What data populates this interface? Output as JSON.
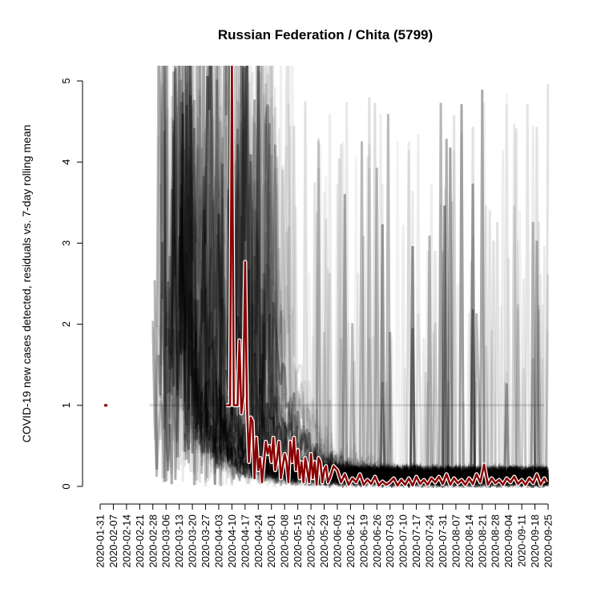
{
  "chart_data": {
    "type": "line",
    "title": "Russian Federation / Chita (5799)",
    "xlabel": "",
    "ylabel": "COVID-19 new cases detected, residuals vs. 7-day rolling mean",
    "ylim": [
      0,
      5
    ],
    "yticks": [
      "0",
      "1",
      "2",
      "3",
      "4",
      "5"
    ],
    "x_tick_labels": [
      "2020-01-31",
      "2020-02-07",
      "2020-02-14",
      "2020-02-21",
      "2020-02-28",
      "2020-03-06",
      "2020-03-13",
      "2020-03-20",
      "2020-03-27",
      "2020-04-03",
      "2020-04-10",
      "2020-04-17",
      "2020-04-24",
      "2020-05-01",
      "2020-05-08",
      "2020-05-15",
      "2020-05-22",
      "2020-05-29",
      "2020-06-05",
      "2020-06-12",
      "2020-06-19",
      "2020-06-26",
      "2020-07-03",
      "2020-07-10",
      "2020-07-17",
      "2020-07-24",
      "2020-07-31",
      "2020-08-07",
      "2020-08-14",
      "2020-08-21",
      "2020-08-28",
      "2020-09-04",
      "2020-09-11",
      "2020-09-18",
      "2020-09-25"
    ],
    "x_start": "2020-01-31",
    "x_end": "2020-09-25",
    "grid": false,
    "background_series_color": "#000000",
    "highlight_color": "#8b0000",
    "series": [
      {
        "x": [
          "2020-02-03",
          "2020-04-07",
          "2020-04-08",
          "2020-04-09",
          "2020-04-10",
          "2020-04-11",
          "2020-04-12",
          "2020-04-13",
          "2020-04-14",
          "2020-04-15",
          "2020-04-16",
          "2020-04-17",
          "2020-04-18",
          "2020-04-19",
          "2020-04-20",
          "2020-04-21",
          "2020-04-22",
          "2020-04-23",
          "2020-04-24",
          "2020-04-25",
          "2020-04-26",
          "2020-04-27",
          "2020-04-28",
          "2020-04-29",
          "2020-04-30",
          "2020-05-01",
          "2020-05-02",
          "2020-05-03",
          "2020-05-04",
          "2020-05-05",
          "2020-05-06",
          "2020-05-07",
          "2020-05-08",
          "2020-05-09",
          "2020-05-10",
          "2020-05-11",
          "2020-05-12",
          "2020-05-13",
          "2020-05-14",
          "2020-05-15",
          "2020-05-16",
          "2020-05-17",
          "2020-05-18",
          "2020-05-19",
          "2020-05-20",
          "2020-05-21",
          "2020-05-22",
          "2020-05-23",
          "2020-05-24",
          "2020-05-25",
          "2020-05-26",
          "2020-05-27",
          "2020-05-28",
          "2020-05-29",
          "2020-05-30",
          "2020-05-31",
          "2020-06-01",
          "2020-06-03",
          "2020-06-05",
          "2020-06-07",
          "2020-06-09",
          "2020-06-11",
          "2020-06-13",
          "2020-06-15",
          "2020-06-17",
          "2020-06-19",
          "2020-06-21",
          "2020-06-23",
          "2020-06-25",
          "2020-06-27",
          "2020-06-29",
          "2020-07-01",
          "2020-07-03",
          "2020-07-05",
          "2020-07-07",
          "2020-07-09",
          "2020-07-11",
          "2020-07-13",
          "2020-07-15",
          "2020-07-17",
          "2020-07-19",
          "2020-07-21",
          "2020-07-23",
          "2020-07-25",
          "2020-07-27",
          "2020-07-29",
          "2020-07-31",
          "2020-08-02",
          "2020-08-04",
          "2020-08-06",
          "2020-08-08",
          "2020-08-10",
          "2020-08-12",
          "2020-08-14",
          "2020-08-16",
          "2020-08-18",
          "2020-08-20",
          "2020-08-22",
          "2020-08-24",
          "2020-08-26",
          "2020-08-28",
          "2020-08-30",
          "2020-09-01",
          "2020-09-03",
          "2020-09-05",
          "2020-09-07",
          "2020-09-09",
          "2020-09-11",
          "2020-09-13",
          "2020-09-15",
          "2020-09-17",
          "2020-09-19",
          "2020-09-21",
          "2020-09-23",
          "2020-09-24"
        ],
        "y": [
          1.0,
          1.0,
          1.0,
          1.0,
          5.2,
          1.0,
          1.0,
          1.0,
          1.8,
          0.9,
          1.1,
          2.77,
          1.0,
          0.3,
          0.85,
          0.8,
          0.1,
          0.6,
          0.2,
          0.35,
          0.05,
          0.3,
          0.55,
          0.4,
          0.5,
          0.3,
          0.6,
          0.2,
          0.35,
          0.55,
          0.1,
          0.25,
          0.4,
          0.3,
          0.05,
          0.55,
          0.3,
          0.6,
          0.2,
          0.45,
          0.1,
          0.3,
          0.05,
          0.35,
          0.2,
          0.05,
          0.4,
          0.1,
          0.3,
          0.02,
          0.35,
          0.3,
          0.05,
          0.2,
          0.25,
          0.05,
          0.1,
          0.25,
          0.2,
          0.05,
          0.15,
          0.02,
          0.1,
          0.05,
          0.15,
          0.02,
          0.08,
          0.03,
          0.12,
          0.01,
          0.06,
          0.02,
          0.05,
          0.1,
          0.01,
          0.08,
          0.02,
          0.1,
          0.01,
          0.12,
          0.03,
          0.08,
          0.02,
          0.1,
          0.05,
          0.12,
          0.03,
          0.15,
          0.02,
          0.1,
          0.04,
          0.08,
          0.02,
          0.1,
          0.03,
          0.15,
          0.05,
          0.27,
          0.02,
          0.1,
          0.04,
          0.08,
          0.02,
          0.1,
          0.05,
          0.12,
          0.03,
          0.08,
          0.02,
          0.1,
          0.04,
          0.15,
          0.02,
          0.1,
          0.05
        ]
      }
    ]
  }
}
